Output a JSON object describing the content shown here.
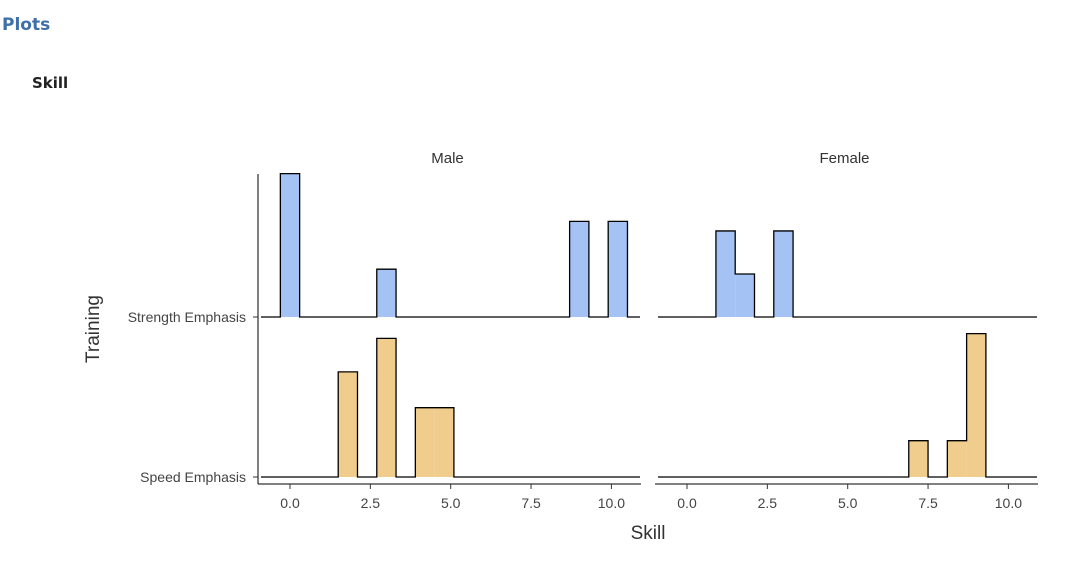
{
  "header": {
    "title": "Plots",
    "subtitle": "Skill"
  },
  "chart_data": {
    "type": "ridgeline-histogram",
    "xlabel": "Skill",
    "ylabel": "Training",
    "xlim": [
      -0.9,
      10.9
    ],
    "x_ticks": [
      0,
      2.5,
      5,
      7.5,
      10
    ],
    "x_tick_labels": [
      "0.0",
      "2.5",
      "5.0",
      "7.5",
      "10.0"
    ],
    "bin_width": 0.6,
    "bin_start": -0.3,
    "grid": false,
    "legend": "none",
    "colors": {
      "Strength Emphasis": "#a4c2f4",
      "Speed Emphasis": "#f0cd8c",
      "outline": "#000000"
    },
    "panels": [
      {
        "name": "Male",
        "groups": [
          {
            "name": "Strength Emphasis",
            "bins": [
              {
                "x": 0.0,
                "density": 0.3
              },
              {
                "x": 3.0,
                "density": 0.1
              },
              {
                "x": 9.0,
                "density": 0.2
              },
              {
                "x": 10.2,
                "density": 0.2
              }
            ]
          },
          {
            "name": "Speed Emphasis",
            "bins": [
              {
                "x": 1.8,
                "density": 0.22
              },
              {
                "x": 3.0,
                "density": 0.29
              },
              {
                "x": 4.2,
                "density": 0.145
              },
              {
                "x": 4.8,
                "density": 0.145
              }
            ]
          }
        ]
      },
      {
        "name": "Female",
        "groups": [
          {
            "name": "Strength Emphasis",
            "bins": [
              {
                "x": 1.2,
                "density": 0.18
              },
              {
                "x": 1.8,
                "density": 0.09
              },
              {
                "x": 3.0,
                "density": 0.18
              }
            ]
          },
          {
            "name": "Speed Emphasis",
            "bins": [
              {
                "x": 7.2,
                "density": 0.076
              },
              {
                "x": 8.4,
                "density": 0.076
              },
              {
                "x": 9.0,
                "density": 0.3
              }
            ]
          }
        ]
      }
    ]
  }
}
